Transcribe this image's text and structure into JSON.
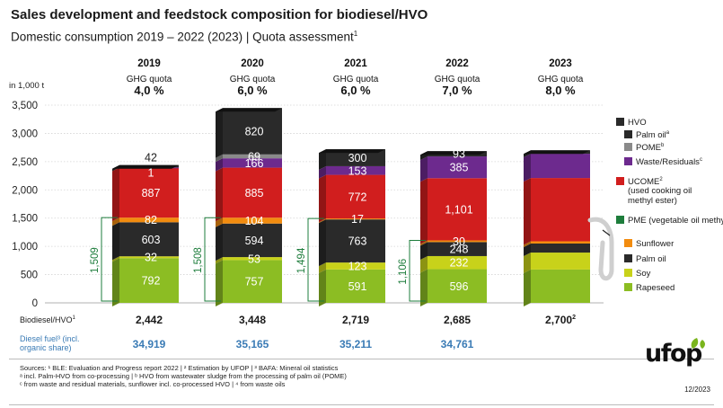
{
  "title": "Sales development and feedstock composition for biodiesel/HVO",
  "subtitle": "Domestic consumption 2019 – 2022 (2023) | Quota assessment",
  "subtitle_sup": "1",
  "chart_data": {
    "type": "bar",
    "stacked": true,
    "unit_label": "in 1,000 t",
    "ylim": [
      0,
      3500
    ],
    "yticks": [
      "0",
      "500",
      "1,000",
      "1,500",
      "2,000",
      "2,500",
      "3,000",
      "3,500"
    ],
    "categories": [
      "2019",
      "2020",
      "2021",
      "2022",
      "2023"
    ],
    "quota_label": "GHG quota",
    "quotas": [
      "4,0 %",
      "6,0 %",
      "6,0 %",
      "7,0 %",
      "8,0 %"
    ],
    "pme_totals": [
      "1,509",
      "1,508",
      "1,494",
      "1,106",
      ""
    ],
    "series": [
      {
        "name": "Rapeseed",
        "color": "#8cbd23",
        "values": [
          792,
          757,
          591,
          596,
          590
        ],
        "labels": [
          "792",
          "757",
          "591",
          "596",
          ""
        ]
      },
      {
        "name": "Soy",
        "color": "#c8d21a",
        "values": [
          32,
          53,
          123,
          232,
          300
        ],
        "labels": [
          "32",
          "53",
          "123",
          "232",
          ""
        ]
      },
      {
        "name": "Palm oil",
        "color": "#2a2a2a",
        "values": [
          603,
          594,
          763,
          248,
          160
        ],
        "labels": [
          "603",
          "594",
          "763",
          "248",
          ""
        ]
      },
      {
        "name": "Sunflower",
        "color": "#f28c0f",
        "values": [
          82,
          104,
          17,
          30,
          40
        ],
        "labels": [
          "82",
          "104",
          "17",
          "30",
          ""
        ]
      },
      {
        "name": "UCOME",
        "color": "#d11e1e",
        "values": [
          887,
          885,
          772,
          1101,
          1120
        ],
        "labels": [
          "887",
          "885",
          "772",
          "1,101",
          ""
        ]
      },
      {
        "name": "Waste/Residuals",
        "color": "#6d2a8e",
        "values": [
          1,
          166,
          153,
          385,
          430
        ],
        "labels": [
          "1",
          "166",
          "153",
          "385",
          ""
        ]
      },
      {
        "name": "POME",
        "color": "#8a8a8a",
        "values": [
          0,
          69,
          0,
          0,
          0
        ],
        "labels": [
          "",
          "69",
          "",
          "",
          ""
        ]
      },
      {
        "name": "Palm oil (HVO)",
        "color": "#2a2a2a",
        "values": [
          42,
          820,
          300,
          93,
          60
        ],
        "labels": [
          "42",
          "820",
          "300",
          "93",
          ""
        ]
      }
    ]
  },
  "legend": {
    "hvo": "HVO",
    "hvo_palm": "Palm oil",
    "hvo_palm_sup": "a",
    "hvo_pome": "POME",
    "hvo_pome_sup": "b",
    "hvo_waste": "Waste/Residuals",
    "hvo_waste_sup": "c",
    "ucome": "UCOME",
    "ucome_sup": "2",
    "ucome_note": "(used cooking oil methyl ester)",
    "pme": "PME (vegetable oil methyl ester)",
    "sunflower": "Sunflower",
    "palm": "Palm oil",
    "soy": "Soy",
    "rapeseed": "Rapeseed"
  },
  "totals": {
    "label": "Biodiesel/HVO",
    "label_sup": "1",
    "values": [
      "2,442",
      "3,448",
      "2,719",
      "2,685",
      "2,700"
    ],
    "last_sup": "2"
  },
  "diesel": {
    "label": "Diesel fuel³ (incl. organic share)",
    "values": [
      "34,919",
      "35,165",
      "35,211",
      "34,761",
      ""
    ]
  },
  "sources": {
    "line1": "Sources: ¹ BLE: Evaluation and Progress report 2022 | ² Estimation by UFOP | ³ BAFA: Mineral oil statistics",
    "line2": "ᵃ incl. Palm-HVO from co-processing | ᵇ HVO from wastewater sludge from the processing of palm oil (POME)",
    "line3": "ᶜ from waste and residual materials, sunflower incl. co-processed HVO | ⁴ from waste oils"
  },
  "logo_text": "ufop",
  "date": "12/2023",
  "colors": {
    "hvo": "#2a2a2a",
    "pome": "#8a8a8a",
    "waste": "#6d2a8e",
    "ucome": "#d11e1e",
    "pme": "#1e7d3c",
    "sunflower": "#f28c0f",
    "palm": "#2a2a2a",
    "soy": "#c8d21a",
    "rapeseed": "#8cbd23",
    "diesel": "#3a7bb5",
    "logo_green": "#7ab51d"
  }
}
